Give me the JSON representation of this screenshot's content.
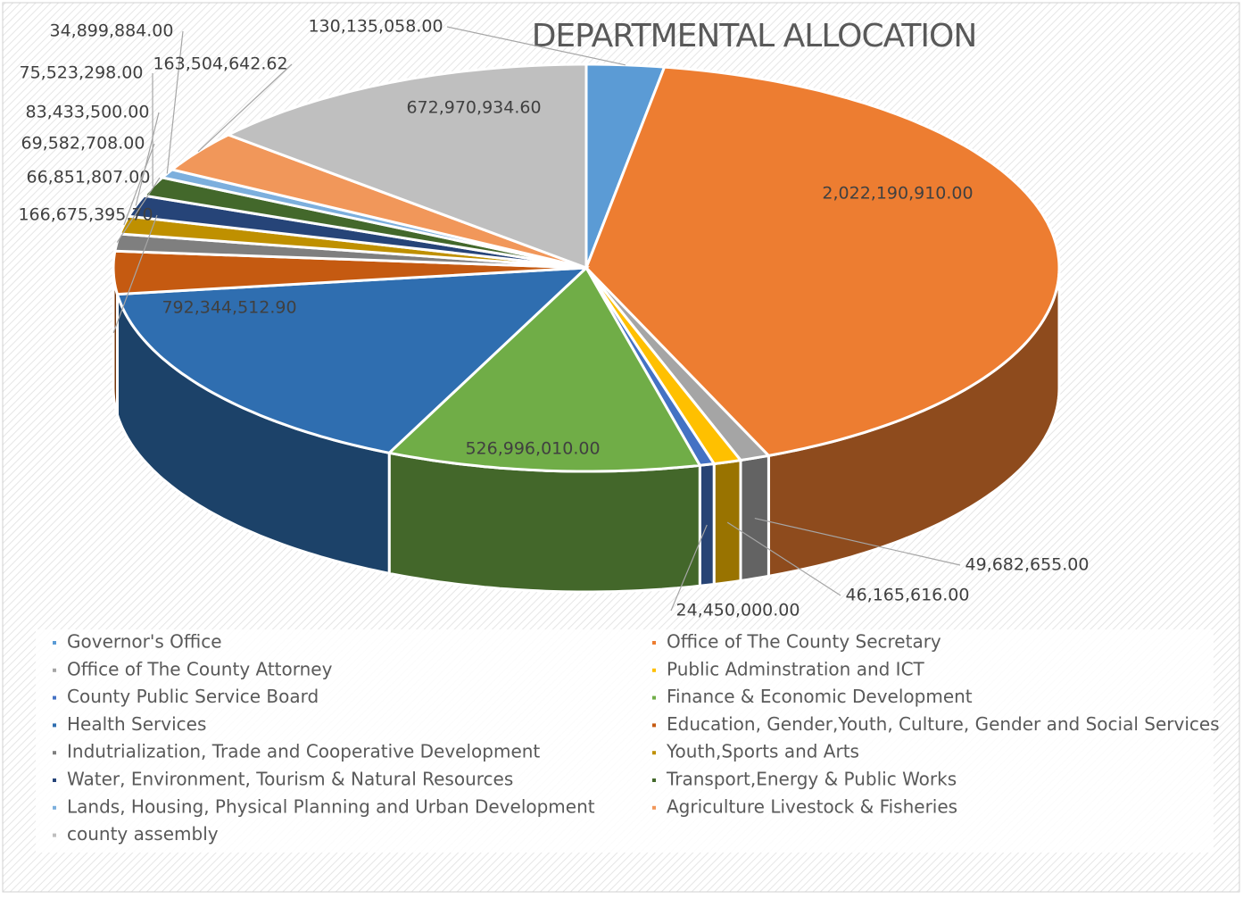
{
  "chart_data": {
    "type": "pie3d",
    "title": "DEPARTMENTAL ALLOCATION",
    "categories": [
      "Governor's  Office",
      "Office of The County Secretary",
      "Office of The County Attorney",
      "Public Adminstration  and ICT",
      "County Public Service Board",
      "Finance & Economic Development",
      "Health Services",
      "Education, Gender,Youth, Culture, Gender and Social Services",
      "Indutrialization, Trade and Cooperative Development",
      "Youth,Sports and Arts",
      "Water, Environment, Tourism & Natural Resources",
      "Transport,Energy & Public Works",
      "Lands, Housing, Physical Planning and Urban Development",
      "Agriculture Livestock & Fisheries",
      "county assembly"
    ],
    "values": [
      130135058,
      2022190910,
      49682655,
      46165616,
      24450000,
      526996010,
      792344512.9,
      166675395.7,
      66851807,
      69582708,
      83433500,
      75523298,
      34899884,
      163504642.62,
      672970934.6
    ],
    "value_labels": [
      "130,135,058.00",
      "2,022,190,910.00",
      "49,682,655.00",
      "46,165,616.00",
      "24,450,000.00",
      "526,996,010.00",
      "792,344,512.90",
      "166,675,395.70",
      "66,851,807.00",
      "69,582,708.00",
      "83,433,500.00",
      "75,523,298.00",
      "34,899,884.00",
      "163,504,642.62",
      "672,970,934.60"
    ],
    "colors": [
      "#5b9bd5",
      "#ed7d31",
      "#a5a5a5",
      "#ffc000",
      "#4472c4",
      "#70ad47",
      "#2f6eb0",
      "#c55a11",
      "#7f7f7f",
      "#bf9000",
      "#264478",
      "#43682b",
      "#7cafdd",
      "#f1975a",
      "#bfbfbf"
    ],
    "legend": "bottom"
  }
}
